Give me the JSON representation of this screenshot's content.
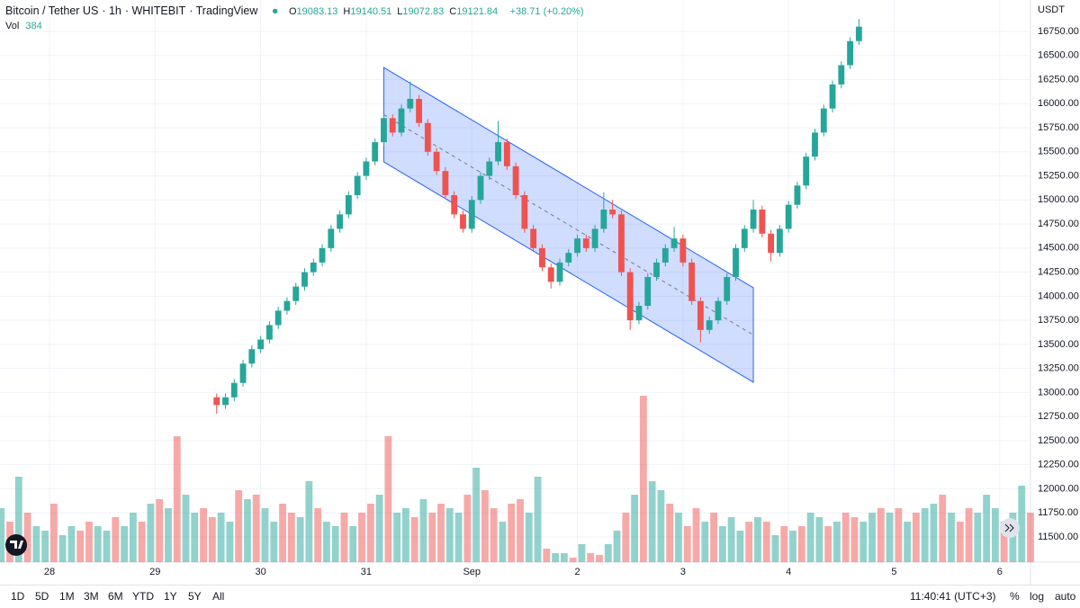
{
  "header": {
    "symbol": "Bitcoin / Tether US",
    "interval": "1h",
    "exchange": "WHITEBIT",
    "source": "TradingView",
    "ohlc": [
      {
        "label": "O",
        "value": "19083.13"
      },
      {
        "label": "H",
        "value": "19140.51"
      },
      {
        "label": "L",
        "value": "19072.83"
      },
      {
        "label": "C",
        "value": "19121.84"
      }
    ],
    "change": "+38.71 (+0.20%)",
    "volume_label": "Vol",
    "volume_value": "384",
    "currency": "USDT"
  },
  "chart_data": {
    "type": "candlestick",
    "up_color": "#26a69a",
    "down_color": "#ef5350",
    "grid": true,
    "x": [
      38,
      40,
      42,
      44,
      46,
      48,
      50,
      52,
      54,
      56,
      58,
      60,
      62,
      64,
      66,
      68,
      70,
      72,
      74,
      76,
      78,
      80,
      82,
      84,
      86,
      88,
      90,
      92,
      94,
      96,
      98,
      100,
      102,
      104,
      106,
      108,
      110,
      112,
      114,
      116,
      118,
      120,
      122,
      124,
      126,
      128,
      130,
      132,
      134,
      136,
      138,
      140,
      142,
      144,
      146,
      148,
      150,
      152,
      154,
      156,
      158,
      160,
      162,
      164,
      166,
      168,
      170,
      172,
      174,
      176,
      178,
      180,
      182,
      184
    ],
    "open": [
      12950,
      12870,
      12950,
      13100,
      13300,
      13450,
      13550,
      13700,
      13850,
      13950,
      14100,
      14250,
      14350,
      14500,
      14700,
      14850,
      15050,
      15250,
      15400,
      15600,
      15850,
      15700,
      15950,
      16050,
      15800,
      15500,
      15300,
      15050,
      14850,
      14700,
      15000,
      15250,
      15400,
      15600,
      15350,
      15050,
      14700,
      14500,
      14300,
      14150,
      14350,
      14450,
      14600,
      14500,
      14700,
      14900,
      14850,
      14250,
      13750,
      13900,
      14200,
      14350,
      14500,
      14600,
      14350,
      13950,
      13650,
      13750,
      13950,
      14200,
      14500,
      14700,
      14900,
      14650,
      14450,
      14700,
      14950,
      15150,
      15450,
      15700,
      15950,
      16200,
      16400,
      16650
    ],
    "high": [
      12990,
      12990,
      13140,
      13340,
      13490,
      13590,
      13740,
      13890,
      13990,
      14140,
      14290,
      14390,
      14540,
      14740,
      14890,
      15090,
      15290,
      15440,
      15640,
      15890,
      15890,
      15990,
      16230,
      16090,
      15840,
      15540,
      15340,
      15090,
      14890,
      15040,
      15290,
      15440,
      15820,
      15640,
      15390,
      15090,
      14740,
      14540,
      14340,
      14390,
      14490,
      14640,
      14640,
      14740,
      15080,
      15000,
      14890,
      14290,
      13940,
      14240,
      14390,
      14540,
      14720,
      14640,
      14390,
      13990,
      13790,
      13990,
      14240,
      14540,
      14740,
      15000,
      14940,
      14690,
      14740,
      14990,
      15190,
      15490,
      15740,
      15990,
      16240,
      16440,
      16690,
      16880
    ],
    "low": [
      12780,
      12830,
      12910,
      13060,
      13260,
      13410,
      13510,
      13660,
      13810,
      13910,
      14060,
      14210,
      14310,
      14460,
      14660,
      14810,
      15010,
      15210,
      15360,
      15560,
      15660,
      15660,
      15910,
      15760,
      15460,
      15260,
      15010,
      14810,
      14660,
      14660,
      14960,
      15210,
      15360,
      15310,
      15010,
      14660,
      14460,
      14260,
      14080,
      14110,
      14310,
      14410,
      14460,
      14460,
      14660,
      14810,
      14210,
      13650,
      13710,
      13860,
      14160,
      14310,
      14460,
      14310,
      13910,
      13520,
      13610,
      13710,
      13910,
      14160,
      14460,
      14660,
      14610,
      14360,
      14410,
      14660,
      14910,
      15110,
      15410,
      15660,
      15910,
      16160,
      16360,
      16610
    ],
    "close": [
      12870,
      12950,
      13100,
      13300,
      13450,
      13550,
      13700,
      13850,
      13950,
      14100,
      14250,
      14350,
      14500,
      14700,
      14850,
      15050,
      15250,
      15400,
      15600,
      15850,
      15700,
      15950,
      16050,
      15800,
      15500,
      15300,
      15050,
      14850,
      14700,
      15000,
      15250,
      15400,
      15600,
      15350,
      15050,
      14700,
      14500,
      14300,
      14150,
      14350,
      14450,
      14600,
      14500,
      14700,
      14900,
      14850,
      14250,
      13750,
      13900,
      14200,
      14350,
      14500,
      14600,
      14350,
      13950,
      13650,
      13750,
      13950,
      14200,
      14500,
      14700,
      14900,
      14650,
      14450,
      14700,
      14950,
      15150,
      15450,
      15700,
      15950,
      16200,
      16400,
      16650,
      16800
    ],
    "volume": {
      "x": [
        -11,
        -9,
        -7,
        -5,
        -3,
        -1,
        1,
        3,
        5,
        7,
        9,
        11,
        13,
        15,
        17,
        19,
        21,
        23,
        25,
        27,
        29,
        31,
        33,
        35,
        37,
        39,
        41,
        43,
        45,
        47,
        49,
        51,
        53,
        55,
        57,
        59,
        61,
        63,
        65,
        67,
        69,
        71,
        73,
        75,
        77,
        79,
        81,
        83,
        85,
        87,
        89,
        91,
        93,
        95,
        97,
        99,
        101,
        103,
        105,
        107,
        109,
        111,
        113,
        115,
        117,
        119,
        121,
        123,
        125,
        127,
        129,
        131,
        133,
        135,
        137,
        139,
        141,
        143,
        145,
        147,
        149,
        151,
        153,
        155,
        157,
        159,
        161,
        163,
        165,
        167,
        169,
        171,
        173,
        175,
        177,
        179,
        181,
        183,
        185,
        187,
        189,
        191,
        193,
        195,
        197,
        199,
        201,
        203,
        205,
        207,
        209,
        211,
        213,
        215,
        217,
        219,
        221,
        223
      ],
      "values": [
        60,
        45,
        95,
        55,
        40,
        35,
        65,
        30,
        40,
        35,
        45,
        40,
        35,
        50,
        40,
        55,
        45,
        65,
        70,
        60,
        140,
        75,
        55,
        60,
        50,
        55,
        45,
        80,
        70,
        75,
        60,
        45,
        65,
        55,
        50,
        90,
        60,
        45,
        40,
        55,
        40,
        55,
        65,
        75,
        140,
        55,
        60,
        50,
        70,
        55,
        65,
        60,
        55,
        75,
        105,
        80,
        60,
        45,
        65,
        70,
        55,
        95,
        15,
        10,
        10,
        5,
        20,
        10,
        8,
        20,
        35,
        55,
        75,
        185,
        90,
        80,
        65,
        55,
        40,
        60,
        45,
        55,
        40,
        50,
        35,
        45,
        50,
        45,
        30,
        40,
        35,
        40,
        55,
        50,
        40,
        45,
        55,
        50,
        45,
        55,
        60,
        55,
        60,
        45,
        55,
        60,
        65,
        75,
        55,
        45,
        60,
        55,
        75,
        60,
        45,
        55,
        85,
        55
      ],
      "directions": "GRGRGGRGGRRGGRGGRGRGRGGRRGGRGRGGRRGGRGGRGRRGRGGRGRRGGRGRRGRRGGRGGRGRRGGRGRGGRGRRGRGGGRGRGRGRGGRGRRGGRGRGRGGRGRRGGGRGGRG"
    },
    "channel": {
      "x": [
        76,
        160
      ],
      "upper": [
        16376,
        14088
      ],
      "lower": [
        15395,
        13107
      ],
      "color": "#2962ff"
    },
    "xlim": [
      -11.25,
      223
    ],
    "ylim": [
      11238,
      17077
    ],
    "xticks": [
      {
        "value": 0,
        "label": "28"
      },
      {
        "value": 24,
        "label": "29"
      },
      {
        "value": 48,
        "label": "30"
      },
      {
        "value": 72,
        "label": "31"
      },
      {
        "value": 96,
        "label": "Sep"
      },
      {
        "value": 120,
        "label": "2"
      },
      {
        "value": 144,
        "label": "3"
      },
      {
        "value": 168,
        "label": "4"
      },
      {
        "value": 192,
        "label": "5"
      },
      {
        "value": 216,
        "label": "6"
      }
    ],
    "yticks": [
      {
        "value": 11500,
        "label": "11500.00"
      },
      {
        "value": 11750,
        "label": "11750.00"
      },
      {
        "value": 12000,
        "label": "12000.00"
      },
      {
        "value": 12250,
        "label": "12250.00"
      },
      {
        "value": 12500,
        "label": "12500.00"
      },
      {
        "value": 12750,
        "label": "12750.00"
      },
      {
        "value": 13000,
        "label": "13000.00"
      },
      {
        "value": 13250,
        "label": "13250.00"
      },
      {
        "value": 13500,
        "label": "13500.00"
      },
      {
        "value": 13750,
        "label": "13750.00"
      },
      {
        "value": 14000,
        "label": "14000.00"
      },
      {
        "value": 14250,
        "label": "14250.00"
      },
      {
        "value": 14500,
        "label": "14500.00"
      },
      {
        "value": 14750,
        "label": "14750.00"
      },
      {
        "value": 15000,
        "label": "15000.00"
      },
      {
        "value": 15250,
        "label": "15250.00"
      },
      {
        "value": 15500,
        "label": "15500.00"
      },
      {
        "value": 15750,
        "label": "15750.00"
      },
      {
        "value": 16000,
        "label": "16000.00"
      },
      {
        "value": 16250,
        "label": "16250.00"
      },
      {
        "value": 16500,
        "label": "16500.00"
      },
      {
        "value": 16750,
        "label": "16750.00"
      }
    ]
  },
  "toolbar": {
    "ranges": [
      "1D",
      "5D",
      "1M",
      "3M",
      "6M",
      "YTD",
      "1Y",
      "5Y",
      "All"
    ],
    "time": "11:40:41 (UTC+3)",
    "options": [
      "%",
      "log",
      "auto"
    ]
  }
}
